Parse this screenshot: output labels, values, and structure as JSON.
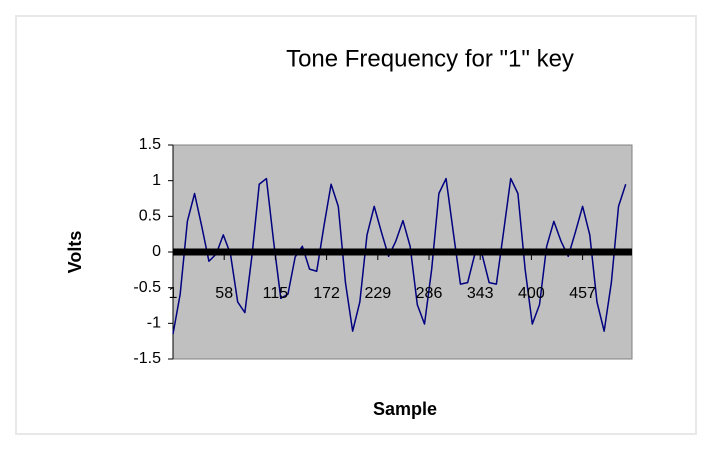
{
  "chart_data": {
    "type": "line",
    "title": "Tone Frequency for \"1\" key",
    "x_label": "Sample",
    "y_label": "Volts",
    "x": [
      1,
      9,
      17,
      25,
      33,
      41,
      49,
      57,
      65,
      73,
      81,
      89,
      97,
      105,
      113,
      121,
      129,
      137,
      145,
      153,
      161,
      169,
      177,
      185,
      193,
      201,
      209,
      217,
      225,
      233,
      241,
      249,
      257,
      265,
      273,
      281,
      289,
      297,
      305,
      313,
      321,
      329,
      337,
      345,
      353,
      361,
      369,
      377,
      385,
      393,
      401,
      409,
      417,
      425,
      433,
      441,
      449,
      457,
      465,
      473,
      481,
      489,
      497,
      505
    ],
    "series": [
      {
        "name": "Volts",
        "color": "#000080",
        "values": [
          -1.15,
          -0.59,
          0.43,
          0.82,
          0.36,
          -0.13,
          -0.03,
          0.24,
          -0.03,
          -0.7,
          -0.85,
          -0.04,
          0.95,
          1.03,
          0.15,
          -0.65,
          -0.59,
          -0.07,
          0.08,
          -0.24,
          -0.27,
          0.36,
          0.95,
          0.64,
          -0.43,
          -1.11,
          -0.7,
          0.24,
          0.64,
          0.28,
          -0.06,
          0.15,
          0.44,
          0.08,
          -0.74,
          -1.01,
          -0.24,
          0.82,
          1.03,
          0.28,
          -0.45,
          -0.43,
          -0.03,
          -0.03,
          -0.43,
          -0.45,
          0.28,
          1.03,
          0.82,
          -0.24,
          -1.01,
          -0.74,
          0.08,
          0.43,
          0.15,
          -0.06,
          0.28,
          0.64,
          0.24,
          -0.7,
          -1.11,
          -0.43,
          0.64,
          0.95
        ]
      }
    ],
    "xlim": [
      1,
      512
    ],
    "xticks": [
      1,
      58,
      115,
      172,
      229,
      286,
      343,
      400,
      457
    ],
    "ylim": [
      -1.5,
      1.5
    ],
    "yticks": [
      1.5,
      1,
      0.5,
      0,
      -0.5,
      -1,
      -1.5
    ],
    "plot_background": "#c0c0c0"
  }
}
